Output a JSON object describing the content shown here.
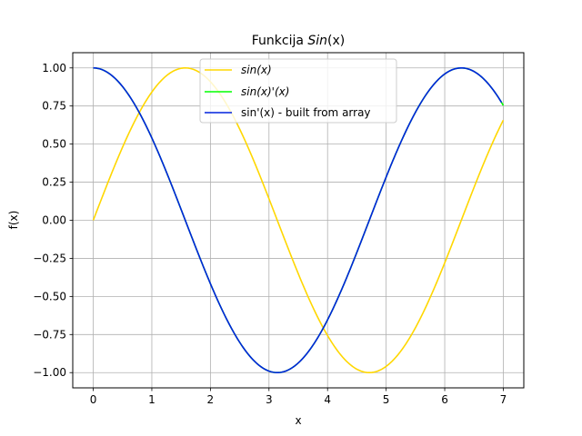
{
  "chart_data": {
    "type": "line",
    "title": "Funkcija Sin(x)",
    "title_parts": {
      "prefix": "Funkcija ",
      "math": "Sin",
      "arg": "(x)"
    },
    "xlabel": "x",
    "ylabel": "f(x)",
    "xlim": [
      -0.35,
      7.35
    ],
    "ylim": [
      -1.1,
      1.1
    ],
    "xticks": [
      0,
      1,
      2,
      3,
      4,
      5,
      6,
      7
    ],
    "xtick_labels": [
      "0",
      "1",
      "2",
      "3",
      "4",
      "5",
      "6",
      "7"
    ],
    "yticks": [
      -1.0,
      -0.75,
      -0.5,
      -0.25,
      0.0,
      0.25,
      0.5,
      0.75,
      1.0
    ],
    "ytick_labels": [
      "−1.00",
      "−0.75",
      "−0.50",
      "−0.25",
      "0.00",
      "0.25",
      "0.50",
      "0.75",
      "1.00"
    ],
    "grid": true,
    "legend_position": "upper-center",
    "x_range": [
      0,
      7
    ],
    "series": [
      {
        "name": "sin(x)",
        "function": "sin",
        "color": "#ffd700",
        "x": [
          0,
          0.5,
          1,
          1.5708,
          2,
          2.5,
          3,
          3.5,
          4,
          4.7124,
          5,
          5.5,
          6,
          6.5,
          7
        ],
        "y": [
          0.0,
          0.479,
          0.841,
          1.0,
          0.909,
          0.598,
          0.141,
          -0.351,
          -0.757,
          -1.0,
          -0.959,
          -0.706,
          -0.279,
          0.215,
          0.657
        ]
      },
      {
        "name": "sin(x)'(x)",
        "function": "cos",
        "color": "#00ff00",
        "x": [
          0,
          0.5,
          1,
          1.5,
          2,
          2.5,
          3,
          3.1416,
          3.5,
          4,
          4.5,
          5,
          5.5,
          6,
          6.2832,
          6.5,
          7
        ],
        "y": [
          1.0,
          0.878,
          0.54,
          0.071,
          -0.416,
          -0.801,
          -0.99,
          -1.0,
          -0.936,
          -0.654,
          -0.211,
          0.284,
          0.709,
          0.96,
          1.0,
          0.977,
          0.754
        ]
      },
      {
        "name": "sin'(x) - built from array",
        "function": "cos-array",
        "color": "#0022dd",
        "x": [
          0,
          0.5,
          1,
          1.5,
          2,
          2.5,
          3,
          3.1416,
          3.5,
          4,
          4.5,
          5,
          5.5,
          6,
          6.2832,
          6.5,
          6.97
        ],
        "y": [
          1.0,
          0.878,
          0.54,
          0.071,
          -0.416,
          -0.801,
          -0.99,
          -1.0,
          -0.936,
          -0.654,
          -0.211,
          0.284,
          0.709,
          0.96,
          1.0,
          0.977,
          0.774
        ]
      }
    ]
  }
}
